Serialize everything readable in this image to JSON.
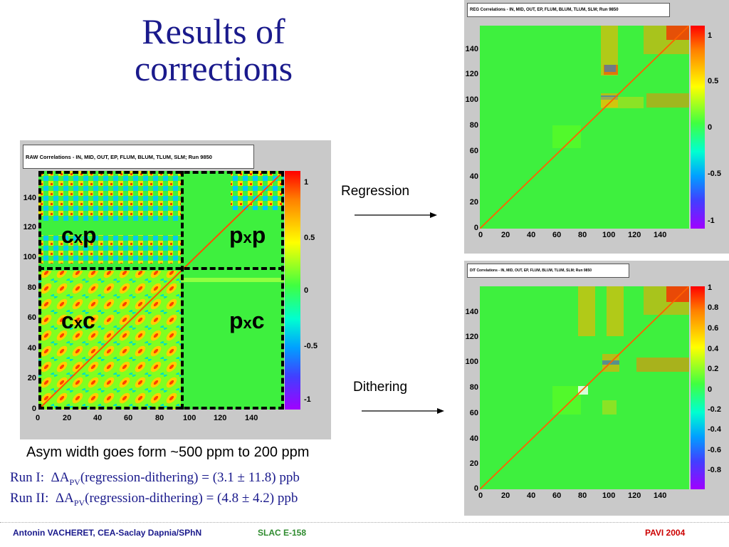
{
  "slide": {
    "title": "Results of corrections",
    "asym_text": "Asym width goes form ~500 ppm to 200 ppm",
    "run1": {
      "label": "Run I:",
      "delta": "ΔA",
      "sub": "PV",
      "rest": "(regression-dithering) = (3.1 ± 11.8) ppb"
    },
    "run2": {
      "label": "Run II:",
      "delta": "ΔA",
      "sub": "PV",
      "rest": "(regression-dithering) = (4.8 ± 4.2) ppb"
    },
    "regression_label": "Regression",
    "dithering_label": "Dithering"
  },
  "raw_plot": {
    "title": "RAW Correlations - IN, MID, OUT, EP, FLUM, BLUM, TLUM, SLM; Run 9850",
    "xticks": [
      "0",
      "20",
      "40",
      "60",
      "80",
      "100",
      "120",
      "140"
    ],
    "yticks": [
      "0",
      "20",
      "40",
      "60",
      "80",
      "100",
      "120",
      "140"
    ],
    "zticks": [
      "1",
      "0.5",
      "0",
      "-0.5",
      "-1"
    ],
    "quadrants": {
      "cxp": [
        "c",
        "x",
        "p"
      ],
      "pxp": [
        "p",
        "x",
        "p"
      ],
      "cxc": [
        "c",
        "x",
        "c"
      ],
      "pxc": [
        "p",
        "x",
        "c"
      ]
    }
  },
  "reg_plot": {
    "title": "REG Correlations - IN, MID, OUT, EP, FLUM, BLUM, TLUM, SLM; Run 9850",
    "xticks": [
      "0",
      "20",
      "40",
      "60",
      "80",
      "100",
      "120",
      "140"
    ],
    "yticks": [
      "0",
      "20",
      "40",
      "60",
      "80",
      "100",
      "120",
      "140"
    ],
    "zticks": [
      "1",
      "0.5",
      "0",
      "-0.5",
      "-1"
    ]
  },
  "dit_plot": {
    "title": "DIT Correlations - IN, MID, OUT, EP, FLUM, BLUM, TLUM, SLM; Run 9850",
    "xticks": [
      "0",
      "20",
      "40",
      "60",
      "80",
      "100",
      "120",
      "140"
    ],
    "yticks": [
      "0",
      "20",
      "40",
      "60",
      "80",
      "100",
      "120",
      "140"
    ],
    "zticks": [
      "1",
      "0.8",
      "0.6",
      "0.4",
      "0.2",
      "0",
      "-0.2",
      "-0.4",
      "-0.6",
      "-0.8"
    ]
  },
  "footer": {
    "author": "Antonin VACHERET,  CEA-Saclay  Dapnia/SPhN",
    "experiment": "SLAC E-158",
    "conference": "PAVI 2004"
  },
  "colors": {
    "title": "#1a1a8c",
    "footer_blue": "#1a1a8c",
    "footer_green": "#2e8b2e",
    "footer_red": "#cc0000"
  }
}
